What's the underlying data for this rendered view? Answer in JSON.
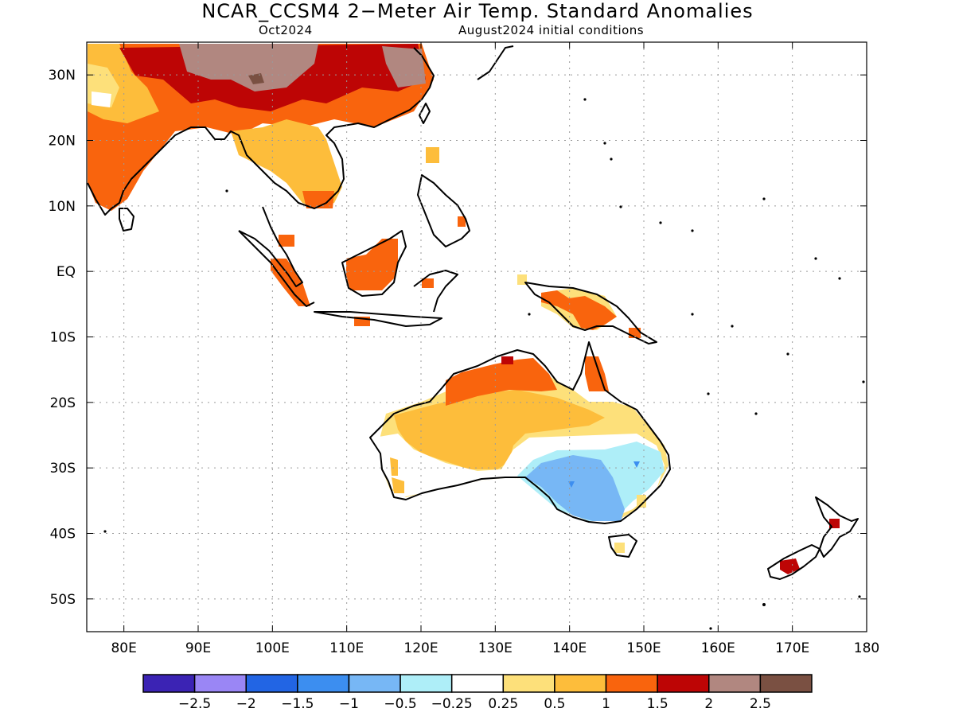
{
  "title": "NCAR_CCSM4 2−Meter Air Temp. Standard Anomalies",
  "subtitle_left": "Oct2024",
  "subtitle_right": "August2024 initial conditions",
  "map": {
    "lon_range": [
      75,
      180
    ],
    "lat_range": [
      -55,
      35
    ],
    "grid": true,
    "lon_ticks": [
      "80E",
      "90E",
      "100E",
      "110E",
      "120E",
      "130E",
      "140E",
      "150E",
      "160E",
      "170E",
      "180"
    ],
    "lat_ticks": [
      "30N",
      "20N",
      "10N",
      "EQ",
      "10S",
      "20S",
      "30S",
      "40S",
      "50S"
    ]
  },
  "legend": {
    "colors": [
      "#3b23b4",
      "#9a86f5",
      "#2265e4",
      "#3c8ef0",
      "#77b7f5",
      "#aeeef8",
      "#ffffff",
      "#fde07a",
      "#fdbd3b",
      "#f9640d",
      "#bd0505",
      "#b18780",
      "#7a5042"
    ],
    "labels": [
      "−2.5",
      "−2",
      "−1.5",
      "−1",
      "−0.5",
      "−0.25",
      "0.25",
      "0.5",
      "1",
      "1.5",
      "2",
      "2.5"
    ]
  }
}
